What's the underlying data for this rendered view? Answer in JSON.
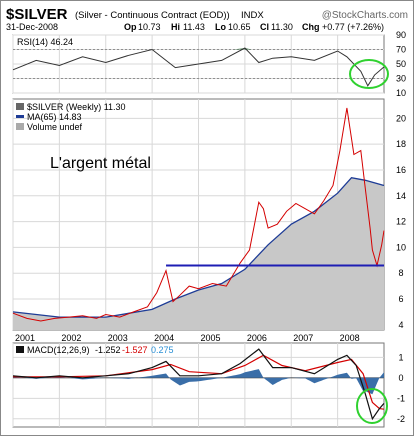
{
  "header": {
    "symbol": "$SILVER",
    "description": "(Silver - Continuous Contract (EOD))",
    "exchange": "INDX",
    "watermark": "@StockCharts.com",
    "date": "31-Dec-2008",
    "open_label": "Op",
    "open": "10.73",
    "high_label": "Hi",
    "high": "11.43",
    "low_label": "Lo",
    "low": "10.65",
    "close_label": "Cl",
    "close": "11.30",
    "change_label": "Chg",
    "change": "+0.77 (+7.26%)"
  },
  "rsi": {
    "label": "RSI(14) 46.24",
    "yticks": [
      10,
      30,
      50,
      70,
      90
    ],
    "ylim": [
      10,
      90
    ]
  },
  "price": {
    "legend_price": "$SILVER (Weekly) 11.30",
    "legend_ma": "MA(65) 14.83",
    "legend_volume": "Volume undef",
    "annotation": "L'argent métal",
    "yticks": [
      4,
      6,
      8,
      10,
      12,
      14,
      16,
      18,
      20
    ],
    "ylim": [
      3.6,
      21.5
    ],
    "support_level": 8.6
  },
  "macd": {
    "label": "MACD(12,26,9)",
    "value1": "-1.252",
    "value2": "-1.527",
    "value3": "0.275",
    "yticks": [
      1,
      0,
      -1,
      -2
    ],
    "ylim": [
      -2.4,
      1.7
    ]
  },
  "x_axis": {
    "years": [
      "2001",
      "2002",
      "2003",
      "2004",
      "2005",
      "2006",
      "2007",
      "2008"
    ],
    "xlim": [
      2001.0,
      2009.0
    ]
  },
  "colors": {
    "price_line": "#d40000",
    "ma_line": "#1e3c96",
    "area_fill": "#c8c8c8",
    "support_line": "#1e1eb4",
    "rsi_fill": "#3c7a4a",
    "macd_line": "#111111",
    "signal_line": "#d40000",
    "histogram": "#3a6ea8",
    "circle": "#2fd12f"
  },
  "chart_data": [
    {
      "type": "line",
      "title": "RSI(14)",
      "x": [
        2001.0,
        2001.5,
        2002.0,
        2002.5,
        2003.0,
        2003.5,
        2004.0,
        2004.3,
        2004.5,
        2005.0,
        2005.5,
        2006.0,
        2006.3,
        2006.6,
        2007.0,
        2007.5,
        2008.0,
        2008.2,
        2008.5,
        2008.65,
        2008.8,
        2009.0
      ],
      "values": [
        42,
        55,
        48,
        60,
        52,
        62,
        70,
        55,
        45,
        50,
        55,
        72,
        52,
        58,
        60,
        55,
        68,
        60,
        40,
        20,
        35,
        46
      ],
      "ylim": [
        10,
        90
      ]
    },
    {
      "type": "line",
      "title": "$SILVER (Weekly)",
      "x": [
        2001.0,
        2001.3,
        2001.6,
        2001.9,
        2002.2,
        2002.5,
        2002.8,
        2003.0,
        2003.3,
        2003.6,
        2003.9,
        2004.1,
        2004.3,
        2004.45,
        2004.6,
        2004.8,
        2005.0,
        2005.3,
        2005.6,
        2005.9,
        2006.1,
        2006.3,
        2006.4,
        2006.5,
        2006.7,
        2006.9,
        2007.1,
        2007.3,
        2007.5,
        2007.7,
        2007.9,
        2008.05,
        2008.2,
        2008.35,
        2008.5,
        2008.6,
        2008.7,
        2008.75,
        2008.85,
        2008.95,
        2009.0
      ],
      "values": [
        4.9,
        4.5,
        4.3,
        4.5,
        4.6,
        4.7,
        4.5,
        4.8,
        4.6,
        5.0,
        5.4,
        6.5,
        8.2,
        5.8,
        6.3,
        7.0,
        6.8,
        7.2,
        7.0,
        8.8,
        9.8,
        13.5,
        13.0,
        11.5,
        11.8,
        12.8,
        13.4,
        13.0,
        12.6,
        13.6,
        14.8,
        17.5,
        20.8,
        17.2,
        17.5,
        14.5,
        11.5,
        9.8,
        8.6,
        10.2,
        11.3
      ],
      "ylim": [
        3.6,
        21.5
      ],
      "series": [
        {
          "name": "MA(65)",
          "x": [
            2001.0,
            2002.0,
            2003.0,
            2004.0,
            2004.5,
            2005.0,
            2005.5,
            2006.0,
            2006.5,
            2007.0,
            2007.5,
            2008.0,
            2008.3,
            2008.6,
            2009.0
          ],
          "values": [
            5.0,
            4.6,
            4.6,
            5.2,
            6.0,
            6.7,
            7.2,
            8.3,
            10.2,
            11.8,
            12.8,
            14.2,
            15.4,
            15.2,
            14.8
          ]
        }
      ]
    },
    {
      "type": "line",
      "title": "MACD(12,26,9)",
      "x": [
        2001.0,
        2001.5,
        2002.0,
        2002.5,
        2003.0,
        2003.5,
        2004.0,
        2004.3,
        2004.6,
        2005.0,
        2005.5,
        2005.9,
        2006.3,
        2006.6,
        2007.0,
        2007.5,
        2008.0,
        2008.2,
        2008.4,
        2008.6,
        2008.75,
        2008.9,
        2009.0
      ],
      "values": [
        0.1,
        0.0,
        0.1,
        0.0,
        0.1,
        0.2,
        0.5,
        0.8,
        0.1,
        0.1,
        0.2,
        0.7,
        1.4,
        0.5,
        0.5,
        0.2,
        0.9,
        1.1,
        0.6,
        -0.8,
        -2.0,
        -1.5,
        -1.25
      ],
      "ylim": [
        -2.4,
        1.7
      ],
      "series": [
        {
          "name": "Signal",
          "x": [
            2001.0,
            2002.0,
            2003.0,
            2004.0,
            2004.4,
            2004.8,
            2005.5,
            2006.0,
            2006.4,
            2006.8,
            2007.3,
            2008.0,
            2008.3,
            2008.55,
            2008.75,
            2008.9,
            2009.0
          ],
          "values": [
            0.05,
            0.05,
            0.1,
            0.4,
            0.65,
            0.3,
            0.2,
            0.6,
            1.1,
            0.6,
            0.35,
            0.75,
            0.9,
            0.2,
            -1.2,
            -1.5,
            -1.53
          ]
        }
      ]
    }
  ]
}
